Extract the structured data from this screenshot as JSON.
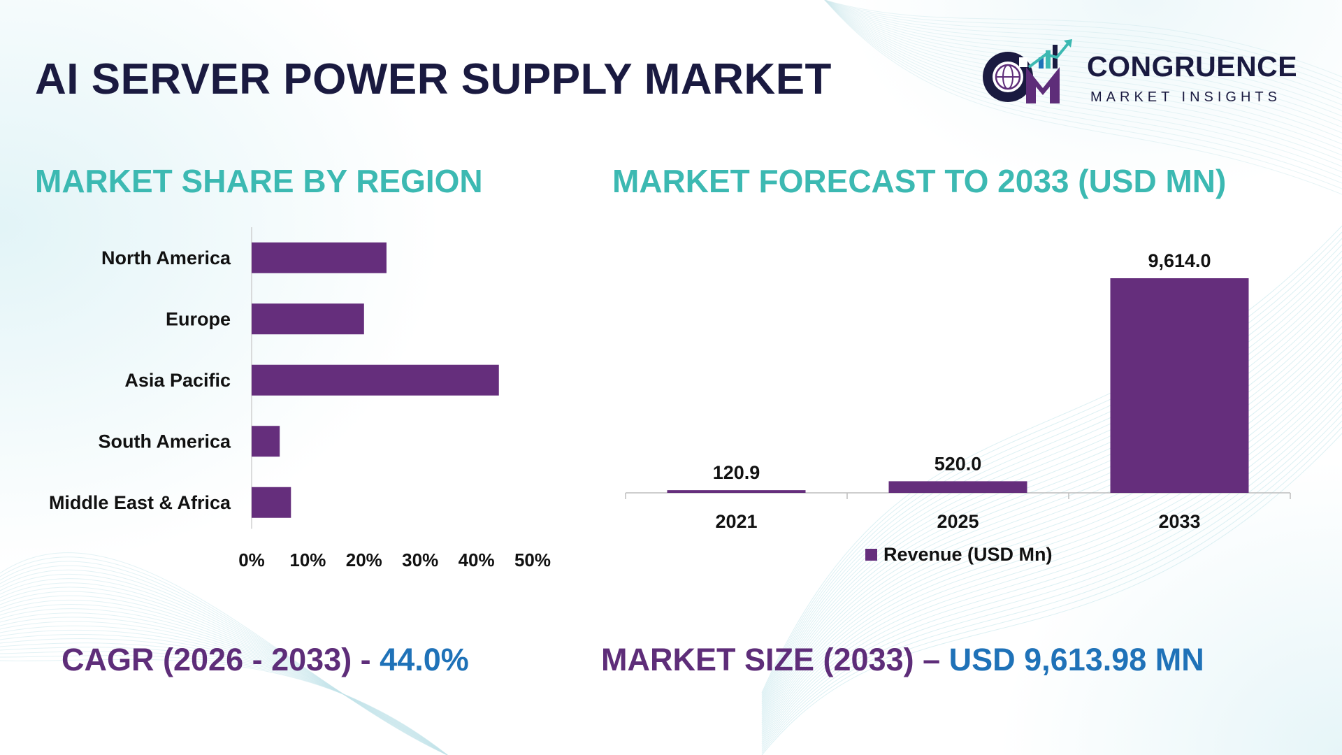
{
  "title": "AI SERVER POWER SUPPLY MARKET",
  "logo": {
    "name": "CONGRUENCE",
    "subtitle": "MARKET INSIGHTS"
  },
  "colors": {
    "bar": "#652e7c",
    "section_title": "#3cb9b2",
    "stat_label": "#5e2d79",
    "stat_value": "#1f72b8",
    "title": "#1a1a40"
  },
  "sections": {
    "region_title": "MARKET SHARE BY REGION",
    "forecast_title": "MARKET FORECAST TO 2033 (USD MN)"
  },
  "stats": {
    "cagr_label": "CAGR (2026 - 2033) - ",
    "cagr_value": "44.0%",
    "size_label": "MARKET SIZE (2033) – ",
    "size_value": "USD 9,613.98 MN"
  },
  "chart_data": [
    {
      "type": "bar",
      "orientation": "horizontal",
      "categories": [
        "North America",
        "Europe",
        "Asia Pacific",
        "South America",
        "Middle East & Africa"
      ],
      "values": [
        24,
        20,
        44,
        5,
        7
      ],
      "xlim": [
        0,
        50
      ],
      "xticks": [
        "0%",
        "10%",
        "20%",
        "30%",
        "40%",
        "50%"
      ],
      "grid": false,
      "legend": "none"
    },
    {
      "type": "bar",
      "categories": [
        "2021",
        "2025",
        "2033"
      ],
      "values": [
        120.9,
        520.0,
        9614.0
      ],
      "data_labels": [
        "120.9",
        "520.0",
        "9,614.0"
      ],
      "series": [
        {
          "name": "Revenue (USD Mn)",
          "values": [
            120.9,
            520.0,
            9614.0
          ]
        }
      ],
      "ylim": [
        0,
        9614.0
      ],
      "grid": false,
      "legend": "bottom"
    }
  ]
}
